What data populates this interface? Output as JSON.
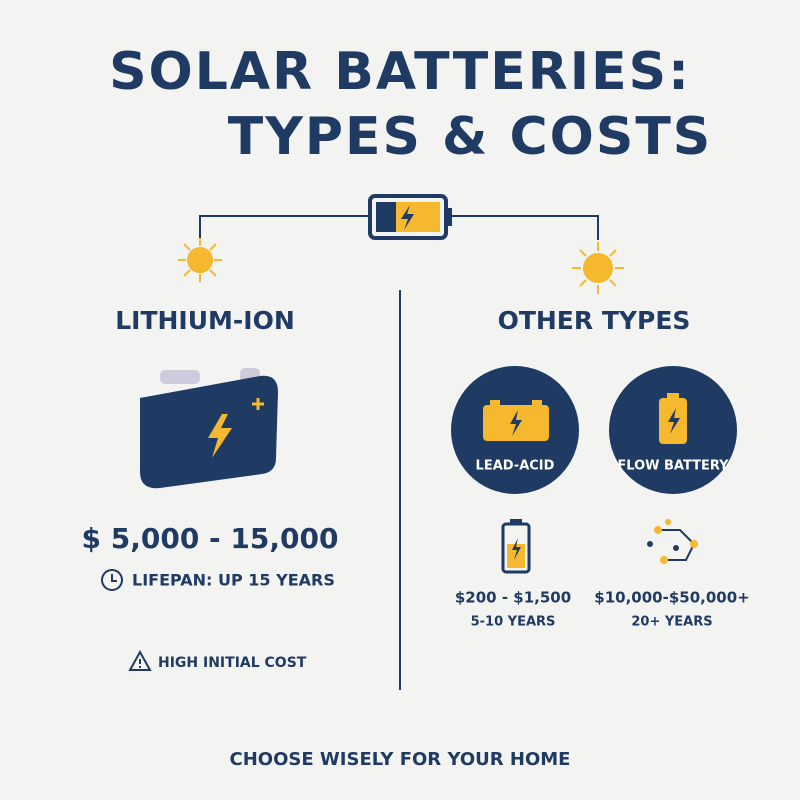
{
  "header": {
    "title_lines": [
      "SOLAR BATTERIES:",
      "TYPES & COSTS"
    ]
  },
  "lithium_ion": {
    "heading": "LITHIUM-ION",
    "price": "$ 5,000 - 15,000",
    "lifespan": "LIFEPAN: UP 15 YEARS",
    "warning": "HIGH INITIAL COST"
  },
  "other_types": {
    "heading": "OTHER TYPES",
    "items": [
      {
        "name": "LEAD-ACID",
        "price": "$200 - $1,500",
        "lifespan": "5-10 YEARS"
      },
      {
        "name": "FLOW BATTERY",
        "price": "$10,000-$50,000+",
        "lifespan": "20+ YEARS"
      }
    ]
  },
  "footer": {
    "text": "CHOOSE WISELY FOR YOUR HOME"
  }
}
